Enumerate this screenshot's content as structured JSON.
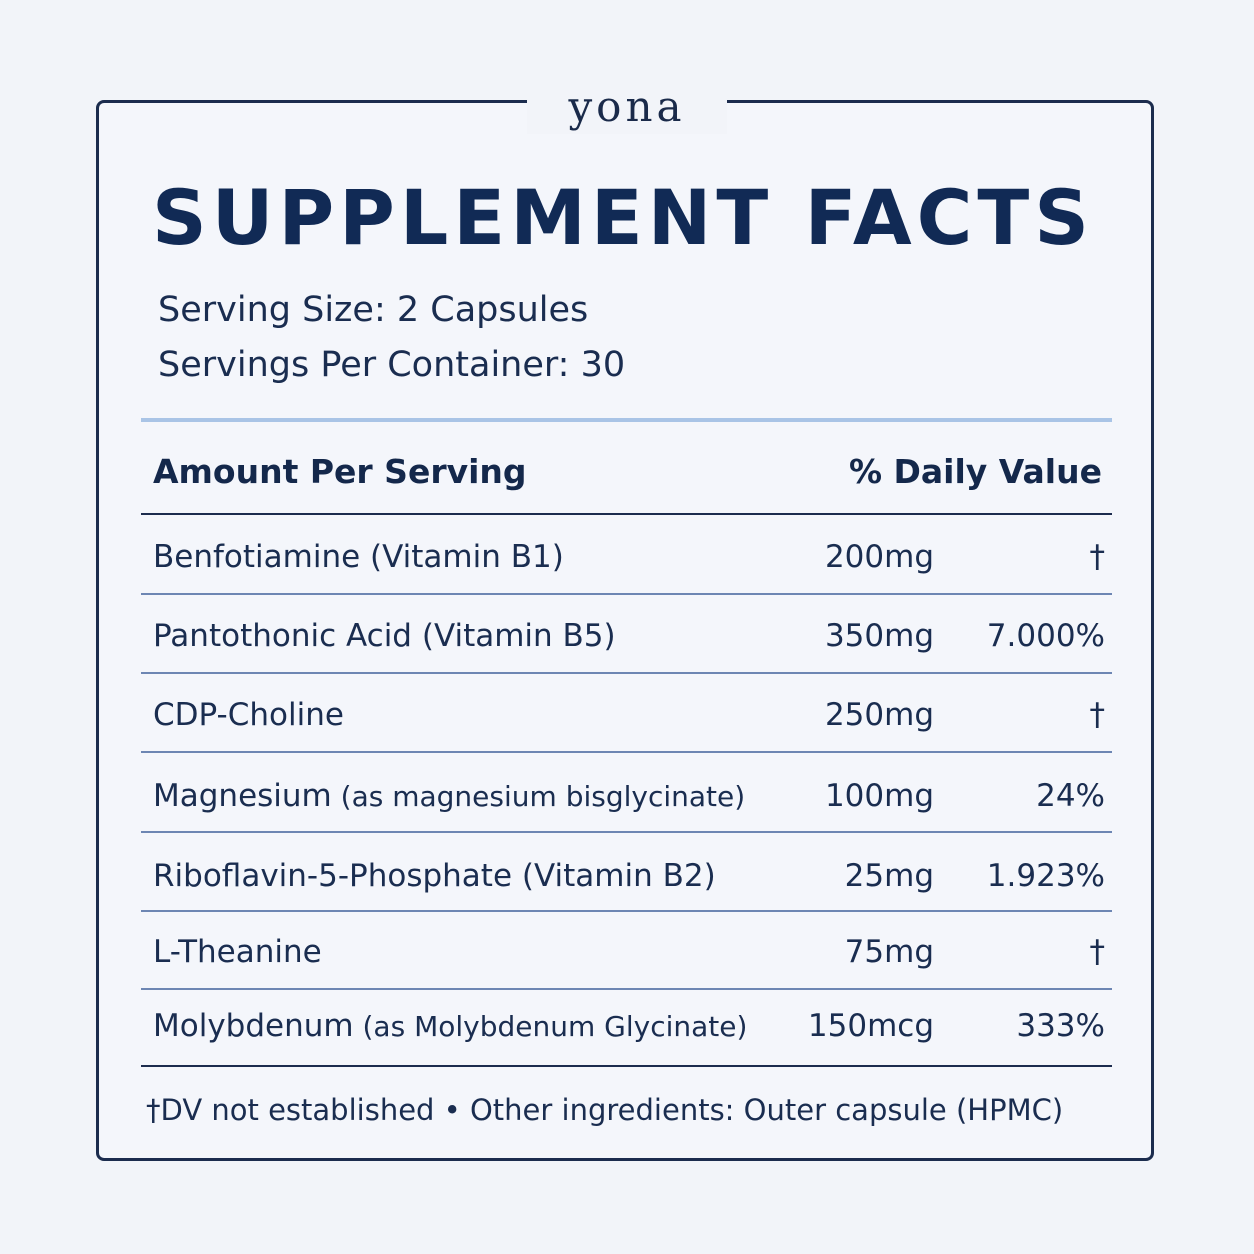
{
  "brand": "yona",
  "title": "SUPPLEMENT FACTS",
  "serving_size": "Serving Size: 2 Capsules",
  "servings_per_container": "Servings Per Container: 30",
  "table": {
    "header_left": "Amount Per Serving",
    "header_right": "% Daily Value",
    "rows": [
      {
        "name": "Benfotiamine (Vitamin B1)",
        "sub": "",
        "amount": "200mg",
        "dv": "†"
      },
      {
        "name": "Pantothonic Acid (Vitamin B5)",
        "sub": "",
        "amount": "350mg",
        "dv": "7.000%"
      },
      {
        "name": "CDP-Choline",
        "sub": "",
        "amount": "250mg",
        "dv": "†"
      },
      {
        "name": "Magnesium",
        "sub": " (as magnesium bisglycinate)",
        "amount": "100mg",
        "dv": "24%"
      },
      {
        "name": "Riboflavin-5-Phosphate (Vitamin B2)",
        "sub": "",
        "amount": "25mg",
        "dv": "1.923%"
      },
      {
        "name": "L-Theanine",
        "sub": "",
        "amount": "75mg",
        "dv": "†"
      },
      {
        "name": "Molybdenum",
        "sub": " (as Molybdenum Glycinate)",
        "amount": "150mcg",
        "dv": "333%"
      }
    ]
  },
  "footnote": "†DV not established • Other ingredients: Outer capsule (HPMC)"
}
